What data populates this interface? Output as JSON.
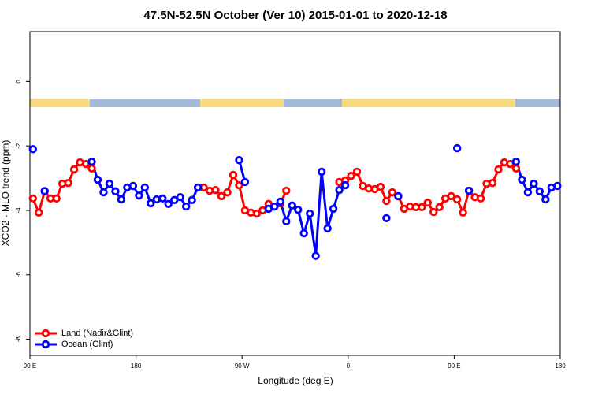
{
  "chart_data": {
    "type": "line",
    "title": "47.5N-52.5N October (Ver 10)   2015-01-01 to 2020-12-18",
    "x_label": "Longitude (deg E)",
    "y_label": "XCO2 - MLO trend (ppm)",
    "x": [
      92.5,
      97.5,
      102.5,
      107.5,
      112.5,
      117.5,
      122.5,
      127.5,
      132.5,
      137.5,
      142.5,
      147.5,
      152.5,
      157.5,
      162.5,
      167.5,
      172.5,
      177.5,
      182.5,
      187.5,
      192.5,
      197.5,
      202.5,
      207.5,
      212.5,
      217.5,
      222.5,
      227.5,
      232.5,
      237.5,
      242.5,
      247.5,
      252.5,
      257.5,
      262.5,
      267.5,
      272.5,
      277.5,
      282.5,
      287.5,
      292.5,
      297.5,
      302.5,
      307.5,
      312.5,
      317.5,
      322.5,
      327.5,
      332.5,
      337.5,
      342.5,
      347.5,
      352.5,
      357.5,
      362.5,
      367.5,
      372.5,
      377.5,
      382.5,
      387.5,
      392.5,
      397.5,
      402.5,
      407.5,
      412.5,
      417.5,
      422.5,
      427.5,
      432.5,
      437.5,
      442.5,
      447.5,
      452.5,
      457.5,
      462.5,
      467.5,
      472.5,
      477.5,
      482.5,
      487.5,
      492.5,
      497.5,
      502.5,
      507.5,
      512.5,
      517.5,
      522.5,
      527.5,
      532.5,
      537.5
    ],
    "series": [
      {
        "name": "Land (Nadir&Glint)",
        "color": "#ff0000",
        "values": [
          -3.63,
          -4.07,
          -3.41,
          -3.63,
          -3.63,
          -3.17,
          -3.15,
          -2.73,
          -2.51,
          -2.56,
          -2.7,
          null,
          null,
          null,
          null,
          null,
          null,
          null,
          null,
          null,
          null,
          null,
          null,
          null,
          null,
          null,
          null,
          null,
          null,
          -3.29,
          -3.39,
          -3.37,
          -3.56,
          -3.44,
          -2.9,
          -3.22,
          -4.0,
          -4.07,
          -4.1,
          -4.0,
          -3.8,
          -3.88,
          -3.78,
          -3.39,
          null,
          null,
          null,
          null,
          null,
          null,
          null,
          null,
          -3.12,
          -3.07,
          -2.93,
          -2.8,
          -3.24,
          -3.32,
          -3.34,
          -3.27,
          -3.71,
          -3.44,
          -3.56,
          -3.95,
          -3.88,
          -3.9,
          -3.9,
          -3.76,
          -4.05,
          -3.9,
          -3.63,
          -3.56,
          -3.66,
          -4.07,
          -3.39,
          -3.59,
          -3.63,
          -3.17,
          -3.15,
          -2.73,
          -2.51,
          -2.56,
          -2.7,
          null,
          null,
          null,
          null,
          null,
          null,
          null
        ]
      },
      {
        "name": "Ocean (Glint)",
        "color": "#0000ff",
        "values": [
          -2.1,
          null,
          -3.4,
          null,
          null,
          null,
          null,
          null,
          null,
          null,
          -2.49,
          -3.05,
          -3.44,
          -3.17,
          -3.41,
          -3.66,
          -3.29,
          -3.24,
          -3.54,
          -3.29,
          -3.78,
          -3.66,
          -3.63,
          -3.8,
          -3.68,
          -3.59,
          -3.88,
          -3.68,
          -3.29,
          null,
          null,
          null,
          null,
          null,
          null,
          -2.44,
          -3.12,
          null,
          null,
          null,
          -3.95,
          -3.88,
          -3.73,
          -4.34,
          -3.85,
          -3.98,
          -4.71,
          -4.1,
          -5.41,
          -2.8,
          -4.56,
          -3.95,
          -3.37,
          -3.22,
          null,
          null,
          null,
          null,
          null,
          null,
          -4.24,
          null,
          -3.56,
          null,
          null,
          null,
          null,
          null,
          null,
          null,
          null,
          null,
          -2.07,
          null,
          -3.39,
          null,
          null,
          null,
          null,
          null,
          null,
          null,
          -2.49,
          -3.05,
          -3.44,
          -3.17,
          -3.41,
          -3.66,
          -3.29,
          -3.24
        ]
      }
    ],
    "xlim": [
      90,
      540
    ],
    "xticks": [
      {
        "value": 90,
        "label": "90 E"
      },
      180,
      {
        "value": 270,
        "label": "90 W"
      },
      {
        "value": 360,
        "label": "0"
      },
      {
        "value": 450,
        "label": "90 E"
      },
      {
        "value": 540,
        "label": "180"
      }
    ],
    "ylim": [
      -8.5,
      1.55
    ],
    "yticks": [
      0,
      -2,
      -4,
      -6,
      -8
    ],
    "grid": false,
    "legend": "bottom-left"
  }
}
